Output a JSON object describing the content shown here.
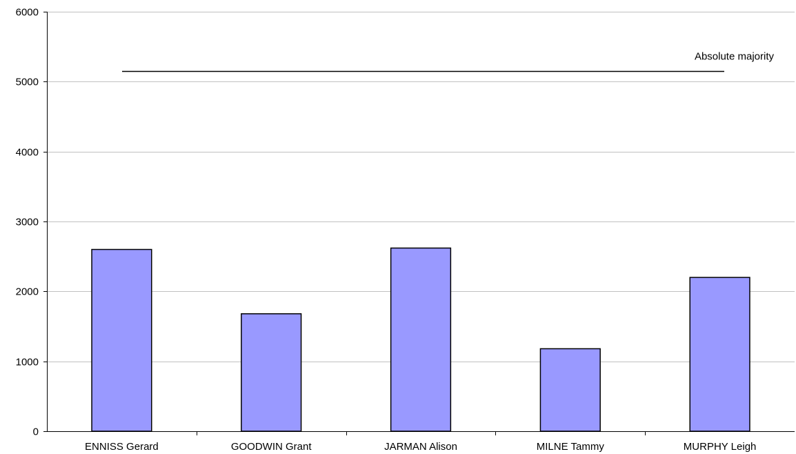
{
  "chart_data": {
    "type": "bar",
    "categories": [
      "ENNISS Gerard",
      "GOODWIN Grant",
      "JARMAN Alison",
      "MILNE Tammy",
      "MURPHY Leigh"
    ],
    "values": [
      2600,
      1680,
      2620,
      1180,
      2200
    ],
    "ylim": [
      0,
      6000
    ],
    "yticks": [
      0,
      1000,
      2000,
      3000,
      4000,
      5000,
      6000
    ],
    "grid": true,
    "legend": "none",
    "reference_line": {
      "label": "Absolute majority",
      "value": 5150
    },
    "colors": {
      "bar_fill": "#9999ff",
      "bar_stroke": "#000000",
      "grid": "#c0c0c0",
      "axis": "#000000"
    }
  }
}
